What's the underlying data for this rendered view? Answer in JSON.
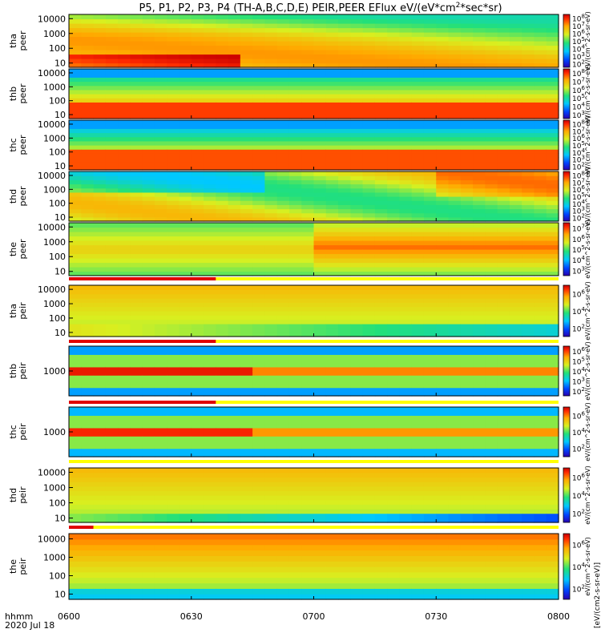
{
  "chart_data": {
    "type": "heatmap",
    "title": "P5, P1, P2, P3, P4 (TH-A,B,C,D,E) PEIR,PEER EFlux eV/(eV*cm2*sec*sr)",
    "title_parts": {
      "main": "P5, P1, P2, P3, P4 (TH-A,B,C,D,E) PEIR,PEER EFlux eV/(eV*cm",
      "sup": "2",
      "tail": "*sec*sr)"
    },
    "date": "2020 Jul 18",
    "time_label": "hhmm",
    "x_ticks": [
      "0600",
      "0630",
      "0700",
      "0730",
      "0800"
    ],
    "x_range": [
      "0600",
      "0800"
    ],
    "colorbar_label": "eV/(cm^2-s-sr-eV)",
    "colorbar_label_bottom": "[eV/(cm2-s-sr-eV)]",
    "panels": [
      {
        "probe": "tha",
        "species": "peer",
        "ylabel": "tha\npeer",
        "yticks": [
          "10",
          "100",
          "1000",
          "10000"
        ],
        "cbar_ticks": [
          "10^2",
          "10^3",
          "10^4",
          "10^5",
          "10^6",
          "10^7",
          "10^8"
        ]
      },
      {
        "probe": "thb",
        "species": "peer",
        "ylabel": "thb\npeer",
        "yticks": [
          "10",
          "100",
          "1000",
          "10000"
        ],
        "cbar_ticks": [
          "10^3",
          "10^4",
          "10^5",
          "10^6",
          "10^7",
          "10^8"
        ]
      },
      {
        "probe": "thc",
        "species": "peer",
        "ylabel": "thc\npeer",
        "yticks": [
          "10",
          "100",
          "1000",
          "10000"
        ],
        "cbar_ticks": [
          "10^2",
          "10^3",
          "10^4",
          "10^5",
          "10^6",
          "10^7",
          "10^8"
        ]
      },
      {
        "probe": "thd",
        "species": "peer",
        "ylabel": "thd\npeer",
        "yticks": [
          "10",
          "100",
          "1000",
          "10000"
        ],
        "cbar_ticks": [
          "10^2",
          "10^3",
          "10^4",
          "10^5",
          "10^6",
          "10^7",
          "10^8"
        ]
      },
      {
        "probe": "the",
        "species": "peer",
        "ylabel": "the\npeer",
        "yticks": [
          "10",
          "100",
          "1000",
          "10000"
        ],
        "cbar_ticks": [
          "10^3",
          "10^4",
          "10^5",
          "10^6",
          "10^7"
        ]
      },
      {
        "probe": "tha",
        "species": "peir",
        "ylabel": "tha\npeir",
        "yticks": [
          "10",
          "100",
          "1000",
          "10000"
        ],
        "cbar_ticks": [
          "10^2",
          "10^4",
          "10^6"
        ]
      },
      {
        "probe": "thb",
        "species": "peir",
        "ylabel": "thb\npeir",
        "yticks": [
          "1000"
        ],
        "cbar_ticks": [
          "10^2",
          "10^3",
          "10^4",
          "10^5",
          "10^6"
        ]
      },
      {
        "probe": "thc",
        "species": "peir",
        "ylabel": "thc\npeir",
        "yticks": [
          "1000"
        ],
        "cbar_ticks": [
          "10^2",
          "10^4",
          "10^6"
        ]
      },
      {
        "probe": "thd",
        "species": "peir",
        "ylabel": "thd\npeir",
        "yticks": [
          "10",
          "100",
          "1000",
          "10000"
        ],
        "cbar_ticks": [
          "10^2",
          "10^4",
          "10^6"
        ]
      },
      {
        "probe": "the",
        "species": "peir",
        "ylabel": "the\npeir",
        "yticks": [
          "10",
          "100",
          "1000",
          "10000"
        ],
        "cbar_ticks": [
          "10^2",
          "10^4",
          "10^6"
        ]
      }
    ]
  }
}
